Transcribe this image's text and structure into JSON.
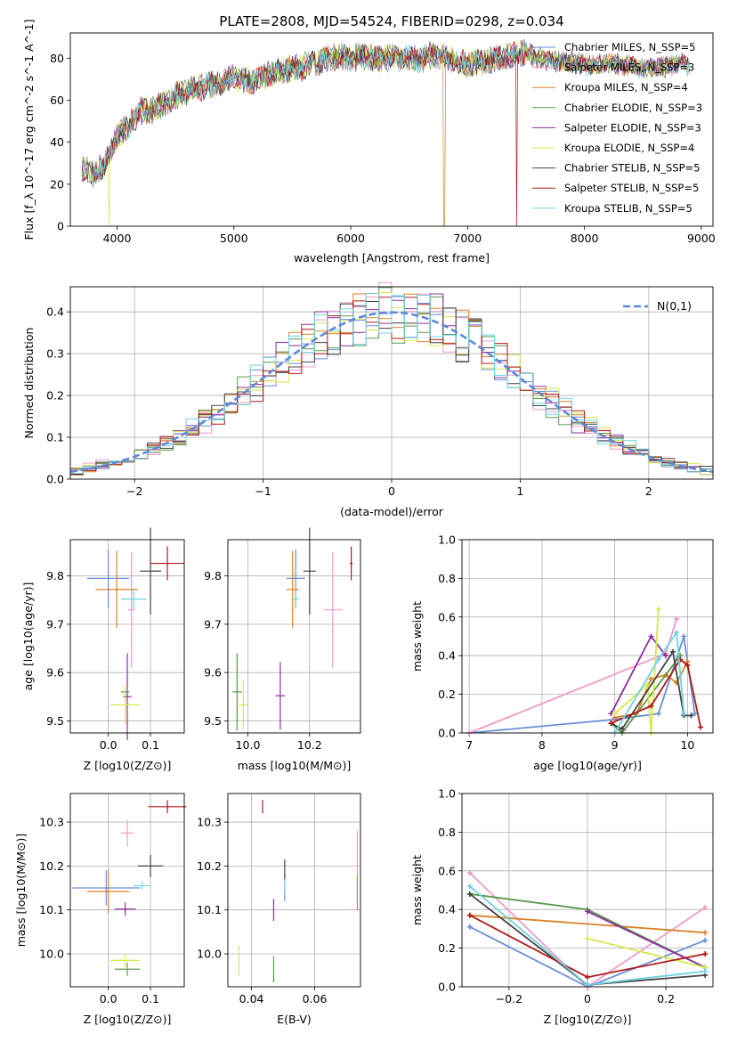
{
  "title": "PLATE=2808, MJD=54524, FIBERID=0298, z=0.034",
  "colors": {
    "Chabrier MILES": "#6a8fd8",
    "Salpeter MILES": "#f09ac8",
    "Kroupa MILES": "#d9822b",
    "Chabrier ELODIE": "#5a9a4a",
    "Salpeter ELODIE": "#8e2ea0",
    "Kroupa ELODIE": "#d6e84a",
    "Chabrier STELIB": "#444444",
    "Salpeter STELIB": "#b01a1a",
    "Kroupa STELIB": "#6fd3e0"
  },
  "legend_spectrum": [
    "Chabrier MILES, N_SSP=5",
    "Salpeter MILES, N_SSP=3",
    "Kroupa MILES, N_SSP=4",
    "Chabrier ELODIE, N_SSP=3",
    "Salpeter ELODIE, N_SSP=3",
    "Kroupa ELODIE, N_SSP=4",
    "Chabrier STELIB, N_SSP=5",
    "Salpeter STELIB, N_SSP=5",
    "Kroupa STELIB, N_SSP=5"
  ],
  "legend_series": [
    "Chabrier MILES",
    "Salpeter MILES",
    "Kroupa MILES",
    "Chabrier ELODIE",
    "Salpeter ELODIE",
    "Kroupa ELODIE",
    "Chabrier STELIB",
    "Salpeter STELIB",
    "Kroupa STELIB"
  ],
  "chart_data": [
    {
      "type": "line",
      "name": "spectrum",
      "xlabel": "wavelength [Angstrom, rest frame]",
      "ylabel": "Flux [f_λ 10^-17 erg cm^-2 s^-1 A^-1]",
      "xlim": [
        3600,
        9100
      ],
      "ylim": [
        0,
        92
      ],
      "xticks": [
        4000,
        5000,
        6000,
        7000,
        8000,
        9000
      ],
      "yticks": [
        0,
        20,
        40,
        60,
        80
      ],
      "grid": false,
      "legend_placement": "right",
      "continuum_points": [
        [
          3700,
          28
        ],
        [
          3800,
          25
        ],
        [
          3900,
          30
        ],
        [
          3950,
          35
        ],
        [
          4000,
          43
        ],
        [
          4100,
          48
        ],
        [
          4200,
          55
        ],
        [
          4300,
          55
        ],
        [
          4400,
          58
        ],
        [
          4500,
          62
        ],
        [
          4600,
          64
        ],
        [
          4700,
          66
        ],
        [
          4800,
          67
        ],
        [
          4900,
          68
        ],
        [
          5000,
          71
        ],
        [
          5100,
          69
        ],
        [
          5200,
          70
        ],
        [
          5300,
          73
        ],
        [
          5400,
          74
        ],
        [
          5500,
          75
        ],
        [
          5600,
          76
        ],
        [
          5700,
          78
        ],
        [
          5800,
          80
        ],
        [
          5900,
          81
        ],
        [
          6000,
          80
        ],
        [
          6100,
          81
        ],
        [
          6200,
          80
        ],
        [
          6300,
          80
        ],
        [
          6400,
          80
        ],
        [
          6500,
          80
        ],
        [
          6600,
          79
        ],
        [
          6700,
          82
        ],
        [
          6800,
          80
        ],
        [
          6900,
          78
        ],
        [
          7000,
          77
        ],
        [
          7100,
          78
        ],
        [
          7200,
          79
        ],
        [
          7300,
          80
        ],
        [
          7400,
          81
        ],
        [
          7500,
          83
        ],
        [
          7600,
          80
        ],
        [
          7700,
          79
        ],
        [
          7800,
          78
        ],
        [
          7900,
          78
        ],
        [
          8000,
          77
        ],
        [
          8100,
          76
        ],
        [
          8200,
          78
        ],
        [
          8300,
          77
        ],
        [
          8400,
          76
        ],
        [
          8500,
          75
        ],
        [
          8600,
          76
        ],
        [
          8700,
          76
        ],
        [
          8800,
          77
        ]
      ],
      "range_end": [
        8900,
        8900,
        8900,
        8800,
        8800,
        8800,
        8900,
        8900,
        8900
      ],
      "dropouts": [
        {
          "series": "Kroupa ELODIE",
          "x": 3930
        },
        {
          "series": "Kroupa MILES",
          "x": 6800
        },
        {
          "series": "Salpeter STELIB",
          "x": 7420
        }
      ]
    },
    {
      "type": "histogram",
      "name": "residuals",
      "xlabel": "(data-model)/error",
      "ylabel": "Normed distribution",
      "xlim": [
        -2.5,
        2.5
      ],
      "ylim": [
        0,
        0.46
      ],
      "xticks": [
        -2,
        -1,
        0,
        1,
        2
      ],
      "yticks": [
        0.0,
        0.1,
        0.2,
        0.3,
        0.4
      ],
      "grid": true,
      "legend": "N(0,1)",
      "legend_placement": "top-right",
      "bin_width": 0.1,
      "note": "nine histogram series scatter around the standard normal curve"
    },
    {
      "type": "scatter",
      "name": "age-vs-Z",
      "xlabel": "Z [log10(Z/Z⊙)]",
      "ylabel": "age [log10(age/yr)]",
      "xlim": [
        -0.09,
        0.18
      ],
      "ylim": [
        9.475,
        9.875
      ],
      "xticks": [
        0.0,
        0.1
      ],
      "yticks": [
        9.5,
        9.6,
        9.7,
        9.8
      ],
      "grid": true,
      "points": [
        {
          "series": "Chabrier MILES",
          "x": 0.0,
          "y": 9.795,
          "xerr": 0.05,
          "yerr": 0.06
        },
        {
          "series": "Salpeter MILES",
          "x": 0.055,
          "y": 9.73,
          "xerr": 0.008,
          "yerr": 0.12
        },
        {
          "series": "Kroupa MILES",
          "x": 0.02,
          "y": 9.772,
          "xerr": 0.05,
          "yerr": 0.08
        },
        {
          "series": "Chabrier ELODIE",
          "x": 0.04,
          "y": 9.56,
          "xerr": 0.01,
          "yerr": 0.0
        },
        {
          "series": "Salpeter ELODIE",
          "x": 0.045,
          "y": 9.55,
          "xerr": 0.01,
          "yerr": 0.09
        },
        {
          "series": "Kroupa ELODIE",
          "x": 0.04,
          "y": 9.533,
          "xerr": 0.035,
          "yerr": 0.04
        },
        {
          "series": "Chabrier STELIB",
          "x": 0.1,
          "y": 9.81,
          "xerr": 0.025,
          "yerr": 0.09
        },
        {
          "series": "Salpeter STELIB",
          "x": 0.14,
          "y": 9.826,
          "xerr": 0.04,
          "yerr": 0.035
        },
        {
          "series": "Kroupa STELIB",
          "x": 0.06,
          "y": 9.752,
          "xerr": 0.03,
          "yerr": 0.02
        }
      ]
    },
    {
      "type": "scatter",
      "name": "age-vs-mass",
      "xlabel": "mass [log10(M/M⊙)]",
      "xlim": [
        9.935,
        10.365
      ],
      "ylim": [
        9.475,
        9.875
      ],
      "xticks": [
        10.0,
        10.2
      ],
      "yticks": [
        9.5,
        9.6,
        9.7,
        9.8
      ],
      "grid": true,
      "points": [
        {
          "series": "Chabrier MILES",
          "x": 10.155,
          "y": 9.795,
          "xerr": 0.03,
          "yerr": 0.06
        },
        {
          "series": "Salpeter MILES",
          "x": 10.275,
          "y": 9.73,
          "xerr": 0.03,
          "yerr": 0.12
        },
        {
          "series": "Kroupa MILES",
          "x": 10.145,
          "y": 9.772,
          "xerr": 0.02,
          "yerr": 0.08
        },
        {
          "series": "Chabrier ELODIE",
          "x": 9.965,
          "y": 9.56,
          "xerr": 0.015,
          "yerr": 0.08
        },
        {
          "series": "Salpeter ELODIE",
          "x": 10.105,
          "y": 9.552,
          "xerr": 0.015,
          "yerr": 0.07
        },
        {
          "series": "Kroupa ELODIE",
          "x": 9.985,
          "y": 9.533,
          "xerr": 0.015,
          "yerr": 0.05
        },
        {
          "series": "Chabrier STELIB",
          "x": 10.2,
          "y": 9.81,
          "xerr": 0.02,
          "yerr": 0.09
        },
        {
          "series": "Salpeter STELIB",
          "x": 10.335,
          "y": 9.826,
          "xerr": 0.005,
          "yerr": 0.035
        },
        {
          "series": "Kroupa STELIB",
          "x": 10.155,
          "y": 9.752,
          "xerr": 0.01,
          "yerr": 0.02
        }
      ]
    },
    {
      "type": "line",
      "name": "mass-weight-vs-age",
      "xlabel": "age [log10(age/yr)]",
      "ylabel": "mass weight",
      "xlim": [
        6.9,
        10.35
      ],
      "ylim": [
        0,
        1
      ],
      "xticks": [
        7,
        8,
        9,
        10
      ],
      "yticks": [
        0.0,
        0.2,
        0.4,
        0.6,
        0.8,
        1.0
      ],
      "grid": true,
      "series": [
        {
          "series": "Chabrier MILES",
          "x": [
            7.0,
            9.0,
            9.6,
            9.95,
            10.1
          ],
          "y": [
            0.0,
            0.07,
            0.1,
            0.5,
            0.1
          ]
        },
        {
          "series": "Salpeter MILES",
          "x": [
            7.0,
            9.7,
            9.85
          ],
          "y": [
            0.0,
            0.41,
            0.59
          ]
        },
        {
          "series": "Kroupa MILES",
          "x": [
            9.0,
            9.3,
            9.5,
            9.7,
            9.85,
            10.0
          ],
          "y": [
            0.08,
            0.1,
            0.28,
            0.3,
            0.26,
            0.37
          ]
        },
        {
          "series": "Chabrier ELODIE",
          "x": [
            8.95,
            9.1,
            9.9
          ],
          "y": [
            0.05,
            0.0,
            0.4
          ]
        },
        {
          "series": "Salpeter ELODIE",
          "x": [
            8.95,
            9.5,
            9.7
          ],
          "y": [
            0.1,
            0.5,
            0.4
          ]
        },
        {
          "series": "Kroupa ELODIE",
          "x": [
            9.0,
            9.45,
            9.5,
            9.6
          ],
          "y": [
            0.1,
            0.25,
            0.0,
            0.64
          ]
        },
        {
          "series": "Chabrier STELIB",
          "x": [
            8.95,
            9.1,
            9.8,
            9.95,
            10.05
          ],
          "y": [
            0.05,
            0.02,
            0.42,
            0.09,
            0.09
          ]
        },
        {
          "series": "Salpeter STELIB",
          "x": [
            8.95,
            9.5,
            9.9,
            10.0,
            10.18
          ],
          "y": [
            0.05,
            0.14,
            0.38,
            0.35,
            0.03
          ]
        },
        {
          "series": "Kroupa STELIB",
          "x": [
            9.0,
            9.6,
            9.85,
            9.95
          ],
          "y": [
            0.0,
            0.38,
            0.52,
            0.1
          ]
        }
      ]
    },
    {
      "type": "scatter",
      "name": "mass-vs-Z",
      "xlabel": "Z [log10(Z/Z⊙)]",
      "ylabel": "mass [log10(M/M⊙)]",
      "xlim": [
        -0.09,
        0.18
      ],
      "ylim": [
        9.925,
        10.365
      ],
      "xticks": [
        0.0,
        0.1
      ],
      "yticks": [
        10.0,
        10.1,
        10.2,
        10.3
      ],
      "grid": true,
      "points": [
        {
          "series": "Chabrier MILES",
          "x": -0.005,
          "y": 10.15,
          "xerr": 0.08,
          "yerr": 0.04
        },
        {
          "series": "Salpeter MILES",
          "x": 0.045,
          "y": 10.275,
          "xerr": 0.015,
          "yerr": 0.03
        },
        {
          "series": "Kroupa MILES",
          "x": 0.0,
          "y": 10.142,
          "xerr": 0.05,
          "yerr": 0.05
        },
        {
          "series": "Chabrier ELODIE",
          "x": 0.045,
          "y": 9.965,
          "xerr": 0.03,
          "yerr": 0.015
        },
        {
          "series": "Salpeter ELODIE",
          "x": 0.04,
          "y": 10.102,
          "xerr": 0.025,
          "yerr": 0.015
        },
        {
          "series": "Kroupa ELODIE",
          "x": 0.04,
          "y": 9.985,
          "xerr": 0.035,
          "yerr": 0.015
        },
        {
          "series": "Chabrier STELIB",
          "x": 0.1,
          "y": 10.2,
          "xerr": 0.03,
          "yerr": 0.025
        },
        {
          "series": "Salpeter STELIB",
          "x": 0.14,
          "y": 10.335,
          "xerr": 0.045,
          "yerr": 0.015
        },
        {
          "series": "Kroupa STELIB",
          "x": 0.08,
          "y": 10.155,
          "xerr": 0.02,
          "yerr": 0.01
        }
      ]
    },
    {
      "type": "scatter",
      "name": "mass-vs-EBV",
      "xlabel": "E(B-V)",
      "xlim": [
        0.0325,
        0.0745
      ],
      "ylim": [
        9.925,
        10.365
      ],
      "xticks": [
        0.04,
        0.06
      ],
      "yticks": [
        10.0,
        10.1,
        10.2,
        10.3
      ],
      "grid": true,
      "points": [
        {
          "series": "Chabrier MILES",
          "x": 0.0505,
          "y": 10.15,
          "yerr": 0.03
        },
        {
          "series": "Salpeter MILES",
          "x": 0.0735,
          "y": 10.23,
          "yerr": 0.05
        },
        {
          "series": "Kroupa MILES",
          "x": 0.0735,
          "y": 10.14,
          "yerr": 0.04
        },
        {
          "series": "Chabrier ELODIE",
          "x": 0.047,
          "y": 9.965,
          "yerr": 0.03
        },
        {
          "series": "Salpeter ELODIE",
          "x": 0.047,
          "y": 10.1,
          "yerr": 0.025
        },
        {
          "series": "Kroupa ELODIE",
          "x": 0.036,
          "y": 9.985,
          "yerr": 0.035
        },
        {
          "series": "Chabrier STELIB",
          "x": 0.0505,
          "y": 10.19,
          "yerr": 0.025
        },
        {
          "series": "Salpeter STELIB",
          "x": 0.0435,
          "y": 10.335,
          "yerr": 0.015
        },
        {
          "series": "Kroupa STELIB",
          "x": 0.0505,
          "y": 10.155,
          "yerr": 0.015
        }
      ]
    },
    {
      "type": "line",
      "name": "mass-weight-vs-Z",
      "xlabel": "Z [log10(Z/Z⊙)]",
      "ylabel": "mass weight",
      "xlim": [
        -0.32,
        0.32
      ],
      "ylim": [
        0,
        1
      ],
      "xticks": [
        -0.2,
        0.0,
        0.2
      ],
      "yticks": [
        0.0,
        0.2,
        0.4,
        0.6,
        0.8,
        1.0
      ],
      "grid": true,
      "series": [
        {
          "series": "Chabrier MILES",
          "x": [
            -0.3,
            0.0,
            0.3
          ],
          "y": [
            0.31,
            0.0,
            0.24
          ]
        },
        {
          "series": "Salpeter MILES",
          "x": [
            -0.3,
            0.0,
            0.3
          ],
          "y": [
            0.59,
            0.0,
            0.41
          ]
        },
        {
          "series": "Kroupa MILES",
          "x": [
            -0.3,
            0.3
          ],
          "y": [
            0.37,
            0.28
          ]
        },
        {
          "series": "Chabrier ELODIE",
          "x": [
            -0.3,
            0.0,
            0.3
          ],
          "y": [
            0.48,
            0.4,
            0.1
          ]
        },
        {
          "series": "Salpeter ELODIE",
          "x": [
            0.0,
            0.3
          ],
          "y": [
            0.39,
            0.1
          ]
        },
        {
          "series": "Kroupa ELODIE",
          "x": [
            0.0,
            0.3
          ],
          "y": [
            0.25,
            0.1
          ]
        },
        {
          "series": "Chabrier STELIB",
          "x": [
            -0.3,
            0.0,
            0.3
          ],
          "y": [
            0.48,
            0.01,
            0.06
          ]
        },
        {
          "series": "Salpeter STELIB",
          "x": [
            -0.3,
            0.0,
            0.3
          ],
          "y": [
            0.37,
            0.05,
            0.17
          ]
        },
        {
          "series": "Kroupa STELIB",
          "x": [
            -0.3,
            0.0,
            0.3
          ],
          "y": [
            0.52,
            0.01,
            0.08
          ]
        }
      ]
    }
  ]
}
